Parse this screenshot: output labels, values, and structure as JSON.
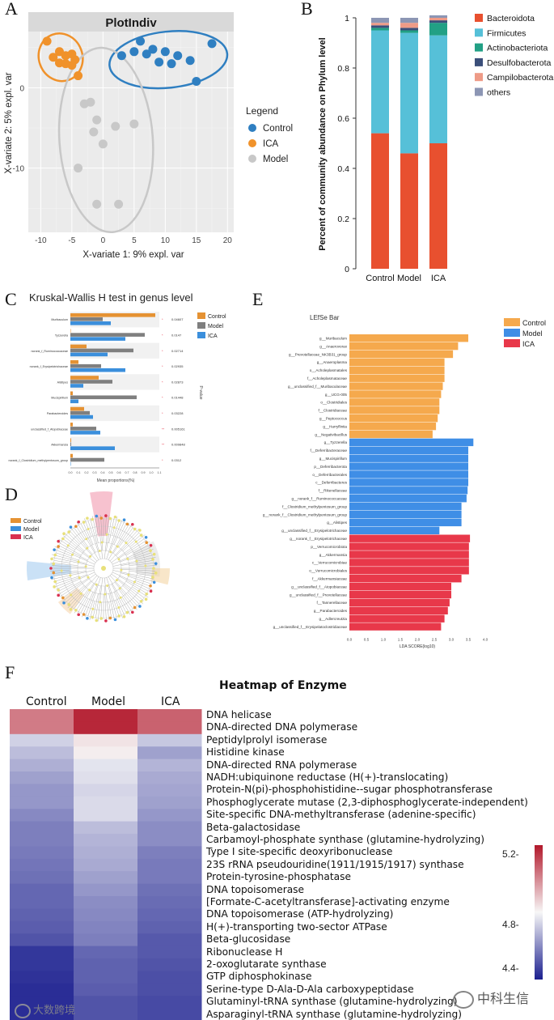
{
  "panels": {
    "A": "A",
    "B": "B",
    "C": "C",
    "D": "D",
    "E": "E",
    "F": "F"
  },
  "panelA": {
    "title": "PlotIndiv",
    "xlabel": "X-variate 1: 9% expl. var",
    "ylabel": "X-variate 2: 5% expl. var",
    "xticks": [
      "-10",
      "-5",
      "0",
      "5",
      "10",
      "15",
      "20"
    ],
    "yticks": [
      "0",
      "-10"
    ],
    "legend_title": "Legend",
    "legend": [
      {
        "label": "Control",
        "color": "#2f7fc1"
      },
      {
        "label": "ICA",
        "color": "#f0922b"
      },
      {
        "label": "Model",
        "color": "#c8c8c8"
      }
    ],
    "points": {
      "Control": [
        [
          3,
          4
        ],
        [
          5,
          4.5
        ],
        [
          6,
          5.8
        ],
        [
          7,
          4.2
        ],
        [
          8,
          4.8
        ],
        [
          9,
          3.2
        ],
        [
          10,
          4.5
        ],
        [
          11,
          3.0
        ],
        [
          12,
          4.0
        ],
        [
          14,
          3.4
        ],
        [
          15,
          0.8
        ],
        [
          17.5,
          5.5
        ]
      ],
      "ICA": [
        [
          -9,
          5.8
        ],
        [
          -8,
          3.8
        ],
        [
          -7,
          4.5
        ],
        [
          -7,
          3.1
        ],
        [
          -6,
          4.0
        ],
        [
          -5,
          4.2
        ],
        [
          -5,
          2.8
        ],
        [
          -4.5,
          3.5
        ],
        [
          -4,
          1.5
        ],
        [
          -6,
          3.0
        ]
      ],
      "Model": [
        [
          -3,
          -2.0
        ],
        [
          -2,
          -1.8
        ],
        [
          -1,
          -4.0
        ],
        [
          -1.5,
          -5.5
        ],
        [
          0,
          -7.0
        ],
        [
          2,
          -4.8
        ],
        [
          5,
          -4.5
        ],
        [
          -4,
          -10.0
        ],
        [
          -1,
          -14.5
        ],
        [
          2.5,
          -14.5
        ]
      ]
    }
  },
  "panelB": {
    "ylabel": "Percent of community abundance on Phylum level",
    "yticks": [
      "0",
      "0.2",
      "0.4",
      "0.6",
      "0.8",
      "1"
    ],
    "categories": [
      "Control",
      "Model",
      "ICA"
    ],
    "legend": [
      {
        "label": "Bacteroidota",
        "color": "#e8502f"
      },
      {
        "label": "Firmicutes",
        "color": "#56c0d8"
      },
      {
        "label": "Actinobacteriota",
        "color": "#22a085"
      },
      {
        "label": "Desulfobacterota",
        "color": "#3b4f7a"
      },
      {
        "label": "Campilobacterota",
        "color": "#ee9b87"
      },
      {
        "label": "others",
        "color": "#8c96b4"
      }
    ]
  },
  "panelC": {
    "title": "Kruskal-Wallis H test in genus level",
    "groups": [
      "Muribaculum",
      "Tyzzerella",
      "norank_f_Ruminococcaceae",
      "norank_f_Erysipelotrichaceae",
      "Alistipes",
      "Mucispirillum",
      "Parabacteroides",
      "unclassified_f_Atopobiaceae",
      "Akkermansia",
      "norank_f_Clostridium_methylpentosum_group"
    ],
    "pvalues": [
      "0.04607",
      "0.0147",
      "0.02714",
      "0.02935",
      "0.02873",
      "0.01448",
      "0.03228",
      "0.005161",
      "0.009848",
      "0.0312"
    ],
    "stars": [
      "*",
      "*",
      "*",
      "*",
      "*",
      "*",
      "*",
      "**",
      "**",
      "*"
    ],
    "xticks": [
      "0.0",
      "0.1",
      "0.2",
      "0.3",
      "0.4",
      "0.5",
      "0.6",
      "0.7",
      "0.8",
      "0.9",
      "1.0",
      "1.1"
    ],
    "xlabel": "Mean proportions(%)",
    "side_label": "P-value",
    "legend": [
      {
        "label": "Control",
        "color": "#e59233"
      },
      {
        "label": "Model",
        "color": "#7f7f7f"
      },
      {
        "label": "ICA",
        "color": "#3b8fdc"
      }
    ]
  },
  "panelD": {
    "legend": [
      {
        "label": "Control",
        "color": "#e59233"
      },
      {
        "label": "Model",
        "color": "#3b8fdc"
      },
      {
        "label": "ICA",
        "color": "#d9304f"
      }
    ]
  },
  "panelE": {
    "title": "LEfSe Bar",
    "xlabel": "LDA SCORE(log10)",
    "xticks": [
      "0.0",
      "0.5",
      "1.0",
      "1.5",
      "2.0",
      "2.5",
      "3.0",
      "3.5",
      "4.0"
    ],
    "legend": [
      {
        "label": "Control",
        "color": "#f5a94d"
      },
      {
        "label": "Model",
        "color": "#3f8ee6"
      },
      {
        "label": "ICA",
        "color": "#e8384a"
      }
    ]
  },
  "panelF": {
    "title": "Heatmap of Enzyme",
    "columns": [
      "Control",
      "Model",
      "ICA"
    ],
    "colorbar_ticks": [
      "5.2-",
      "4.8-",
      "4.4-"
    ],
    "rows": [
      "DNA helicase",
      "DNA-directed DNA polymerase",
      "Peptidylprolyl isomerase",
      "Histidine kinase",
      "DNA-directed RNA polymerase",
      "NADH:ubiquinone reductase (H(+)-translocating)",
      "Protein-N(pi)-phosphohistidine--sugar phosphotransferase",
      "Phosphoglycerate mutase (2,3-diphosphoglycerate-independent)",
      "Site-specific DNA-methyltransferase (adenine-specific)",
      "Beta-galactosidase",
      "Carbamoyl-phosphate synthase (glutamine-hydrolyzing)",
      "Type I site-specific deoxyribonuclease",
      "23S rRNA pseudouridine(1911/1915/1917) synthase",
      "Protein-tyrosine-phosphatase",
      "DNA topoisomerase",
      "[Formate-C-acetyltransferase]-activating enzyme",
      "DNA topoisomerase (ATP-hydrolyzing)",
      "H(+)-transporting two-sector ATPase",
      "Beta-glucosidase",
      "Ribonuclease H",
      "2-oxoglutarate synthase",
      "GTP diphosphokinase",
      "Serine-type D-Ala-D-Ala carboxypeptidase",
      "Glutaminyl-tRNA synthase (glutamine-hydrolyzing)",
      "Asparaginyl-tRNA synthase (glutamine-hydrolyzing)"
    ]
  },
  "watermarks": {
    "left": "大数跨境",
    "right": "中科生信"
  },
  "chart_data": [
    {
      "type": "scatter",
      "title": "PlotIndiv",
      "xlabel": "X-variate 1: 9% expl. var",
      "ylabel": "X-variate 2: 5% expl. var",
      "xlim": [
        -12,
        21
      ],
      "ylim": [
        -18,
        7
      ],
      "series": [
        {
          "name": "Control",
          "points": [
            [
              3,
              4
            ],
            [
              5,
              4.5
            ],
            [
              6,
              5.8
            ],
            [
              7,
              4.2
            ],
            [
              8,
              4.8
            ],
            [
              9,
              3.2
            ],
            [
              10,
              4.5
            ],
            [
              11,
              3.0
            ],
            [
              12,
              4.0
            ],
            [
              14,
              3.4
            ],
            [
              15,
              0.8
            ],
            [
              17.5,
              5.5
            ]
          ]
        },
        {
          "name": "ICA",
          "points": [
            [
              -9,
              5.8
            ],
            [
              -8,
              3.8
            ],
            [
              -7,
              4.5
            ],
            [
              -7,
              3.1
            ],
            [
              -6,
              4.0
            ],
            [
              -5,
              4.2
            ],
            [
              -5,
              2.8
            ],
            [
              -4.5,
              3.5
            ],
            [
              -4,
              1.5
            ],
            [
              -6,
              3.0
            ]
          ]
        },
        {
          "name": "Model",
          "points": [
            [
              -3,
              -2.0
            ],
            [
              -2,
              -1.8
            ],
            [
              -1,
              -4.0
            ],
            [
              -1.5,
              -5.5
            ],
            [
              0,
              -7.0
            ],
            [
              2,
              -4.8
            ],
            [
              5,
              -4.5
            ],
            [
              -4,
              -10.0
            ],
            [
              -1,
              -14.5
            ],
            [
              2.5,
              -14.5
            ]
          ]
        }
      ]
    },
    {
      "type": "bar",
      "stacked": true,
      "ylabel": "Percent of community abundance on Phylum level",
      "ylim": [
        0,
        1
      ],
      "categories": [
        "Control",
        "Model",
        "ICA"
      ],
      "series": [
        {
          "name": "Bacteroidota",
          "values": [
            0.54,
            0.46,
            0.5
          ]
        },
        {
          "name": "Firmicutes",
          "values": [
            0.41,
            0.48,
            0.43
          ]
        },
        {
          "name": "Actinobacteriota",
          "values": [
            0.01,
            0.01,
            0.05
          ]
        },
        {
          "name": "Desulfobacterota",
          "values": [
            0.01,
            0.01,
            0.01
          ]
        },
        {
          "name": "Campilobacterota",
          "values": [
            0.01,
            0.02,
            0.01
          ]
        },
        {
          "name": "others",
          "values": [
            0.02,
            0.02,
            0.01
          ]
        }
      ]
    },
    {
      "type": "bar",
      "orientation": "horizontal",
      "title": "Kruskal-Wallis H test in genus level",
      "xlabel": "Mean proportions(%)",
      "xlim": [
        0,
        1.1
      ],
      "categories": [
        "Muribaculum",
        "Tyzzerella",
        "norank_f_Ruminococcaceae",
        "norank_f_Erysipelotrichaceae",
        "Alistipes",
        "Mucispirillum",
        "Parabacteroides",
        "unclassified_f_Atopobiaceae",
        "Akkermansia",
        "norank_f_Clostridium_methylpentosum_group"
      ],
      "series": [
        {
          "name": "Control",
          "values": [
            1.05,
            0.0,
            0.2,
            0.1,
            0.35,
            0.03,
            0.17,
            0.03,
            0.01,
            0.03
          ]
        },
        {
          "name": "Model",
          "values": [
            0.4,
            0.92,
            0.78,
            0.38,
            0.52,
            0.82,
            0.24,
            0.32,
            0.01,
            0.42
          ]
        },
        {
          "name": "ICA",
          "values": [
            0.5,
            0.68,
            0.46,
            0.68,
            0.16,
            0.1,
            0.28,
            0.37,
            0.55,
            0.0
          ]
        }
      ]
    },
    {
      "type": "bar",
      "orientation": "horizontal",
      "title": "LEfSe Bar",
      "xlabel": "LDA SCORE(log10)",
      "xlim": [
        0,
        4
      ],
      "categories": [
        "g__Muribaculum",
        "g__Anaerovorax",
        "g__Prevotellaceae_NK3B31_group",
        "g__Anaeroplasma",
        "o__Acholeplasmatales",
        "f__Acholeplasmataceae",
        "g__unclassified_f__Muribaculaceae",
        "g__UCG-005",
        "o__Clostridiales",
        "f__Clostridiaceae",
        "g__Peptococcus",
        "g__Harryflintia",
        "g__Negativibacillus",
        "g__Tyzzerella",
        "f__Deferribacteraceae",
        "g__Mucispirillum",
        "p__Deferribacterota",
        "o__Deferribacterales",
        "c__Deferribacteres",
        "f__Rikenellaceae",
        "g__norank_f__Ruminococcaceae",
        "f__Clostridium_methylpentosum_group",
        "g__norank_f__Clostridium_methylpentosum_group",
        "g__Alistipes",
        "g__unclassified_f__Erysipelotrichaceae",
        "g__norank_f__Erysipelotrichaceae",
        "p__Verrucomicrobiota",
        "g__Akkermansia",
        "c__Verrucomicrobiae",
        "o__Verrucomicrobiales",
        "f__Akkermansiaceae",
        "g__unclassified_f__Atopobiaceae",
        "g__unclassified_f__Prevotellaceae",
        "f__Tannerellaceae",
        "g__Parabacteroides",
        "g__Adlercreutzia",
        "g__unclassified_f__Erysipelatoclostridiaceae"
      ],
      "groups": [
        "Control",
        "Control",
        "Control",
        "Control",
        "Control",
        "Control",
        "Control",
        "Control",
        "Control",
        "Control",
        "Control",
        "Control",
        "Control",
        "Model",
        "Model",
        "Model",
        "Model",
        "Model",
        "Model",
        "Model",
        "Model",
        "Model",
        "Model",
        "Model",
        "Model",
        "ICA",
        "ICA",
        "ICA",
        "ICA",
        "ICA",
        "ICA",
        "ICA",
        "ICA",
        "ICA",
        "ICA",
        "ICA",
        "ICA"
      ],
      "values": [
        3.5,
        3.2,
        3.05,
        2.8,
        2.8,
        2.8,
        2.75,
        2.7,
        2.65,
        2.65,
        2.6,
        2.55,
        2.45,
        3.65,
        3.5,
        3.5,
        3.5,
        3.5,
        3.5,
        3.48,
        3.45,
        3.3,
        3.3,
        3.3,
        2.65,
        3.55,
        3.52,
        3.52,
        3.52,
        3.52,
        3.3,
        3.0,
        3.0,
        2.95,
        2.9,
        2.8,
        2.7
      ]
    },
    {
      "type": "heatmap",
      "title": "Heatmap of Enzyme",
      "columns": [
        "Control",
        "Model",
        "ICA"
      ],
      "color_range": [
        4.35,
        5.25
      ],
      "rows": [
        "DNA helicase",
        "DNA-directed DNA polymerase",
        "Peptidylprolyl isomerase",
        "Histidine kinase",
        "DNA-directed RNA polymerase",
        "NADH:ubiquinone reductase (H(+)-translocating)",
        "Protein-N(pi)-phosphohistidine--sugar phosphotransferase",
        "Phosphoglycerate mutase (2,3-diphosphoglycerate-independent)",
        "Site-specific DNA-methyltransferase (adenine-specific)",
        "Beta-galactosidase",
        "Carbamoyl-phosphate synthase (glutamine-hydrolyzing)",
        "Type I site-specific deoxyribonuclease",
        "23S rRNA pseudouridine(1911/1915/1917) synthase",
        "Protein-tyrosine-phosphatase",
        "DNA topoisomerase",
        "[Formate-C-acetyltransferase]-activating enzyme",
        "DNA topoisomerase (ATP-hydrolyzing)",
        "H(+)-transporting two-sector ATPase",
        "Beta-glucosidase",
        "Ribonuclease H",
        "2-oxoglutarate synthase",
        "GTP diphosphokinase",
        "Serine-type D-Ala-D-Ala carboxypeptidase",
        "Glutaminyl-tRNA synthase (glutamine-hydrolyzing)",
        "Asparaginyl-tRNA synthase (glutamine-hydrolyzing)"
      ],
      "values": [
        [
          5.05,
          5.22,
          5.1
        ],
        [
          5.05,
          5.22,
          5.1
        ],
        [
          4.72,
          4.84,
          4.7
        ],
        [
          4.68,
          4.82,
          4.62
        ],
        [
          4.65,
          4.76,
          4.66
        ],
        [
          4.62,
          4.75,
          4.64
        ],
        [
          4.6,
          4.73,
          4.63
        ],
        [
          4.6,
          4.74,
          4.62
        ],
        [
          4.57,
          4.74,
          4.6
        ],
        [
          4.55,
          4.68,
          4.58
        ],
        [
          4.55,
          4.66,
          4.58
        ],
        [
          4.54,
          4.65,
          4.55
        ],
        [
          4.53,
          4.64,
          4.54
        ],
        [
          4.52,
          4.62,
          4.54
        ],
        [
          4.5,
          4.6,
          4.52
        ],
        [
          4.5,
          4.58,
          4.51
        ],
        [
          4.49,
          4.57,
          4.5
        ],
        [
          4.48,
          4.56,
          4.49
        ],
        [
          4.46,
          4.55,
          4.47
        ],
        [
          4.4,
          4.5,
          4.47
        ],
        [
          4.4,
          4.49,
          4.46
        ],
        [
          4.39,
          4.49,
          4.45
        ],
        [
          4.38,
          4.48,
          4.45
        ],
        [
          4.38,
          4.46,
          4.44
        ],
        [
          4.38,
          4.46,
          4.44
        ]
      ]
    }
  ]
}
